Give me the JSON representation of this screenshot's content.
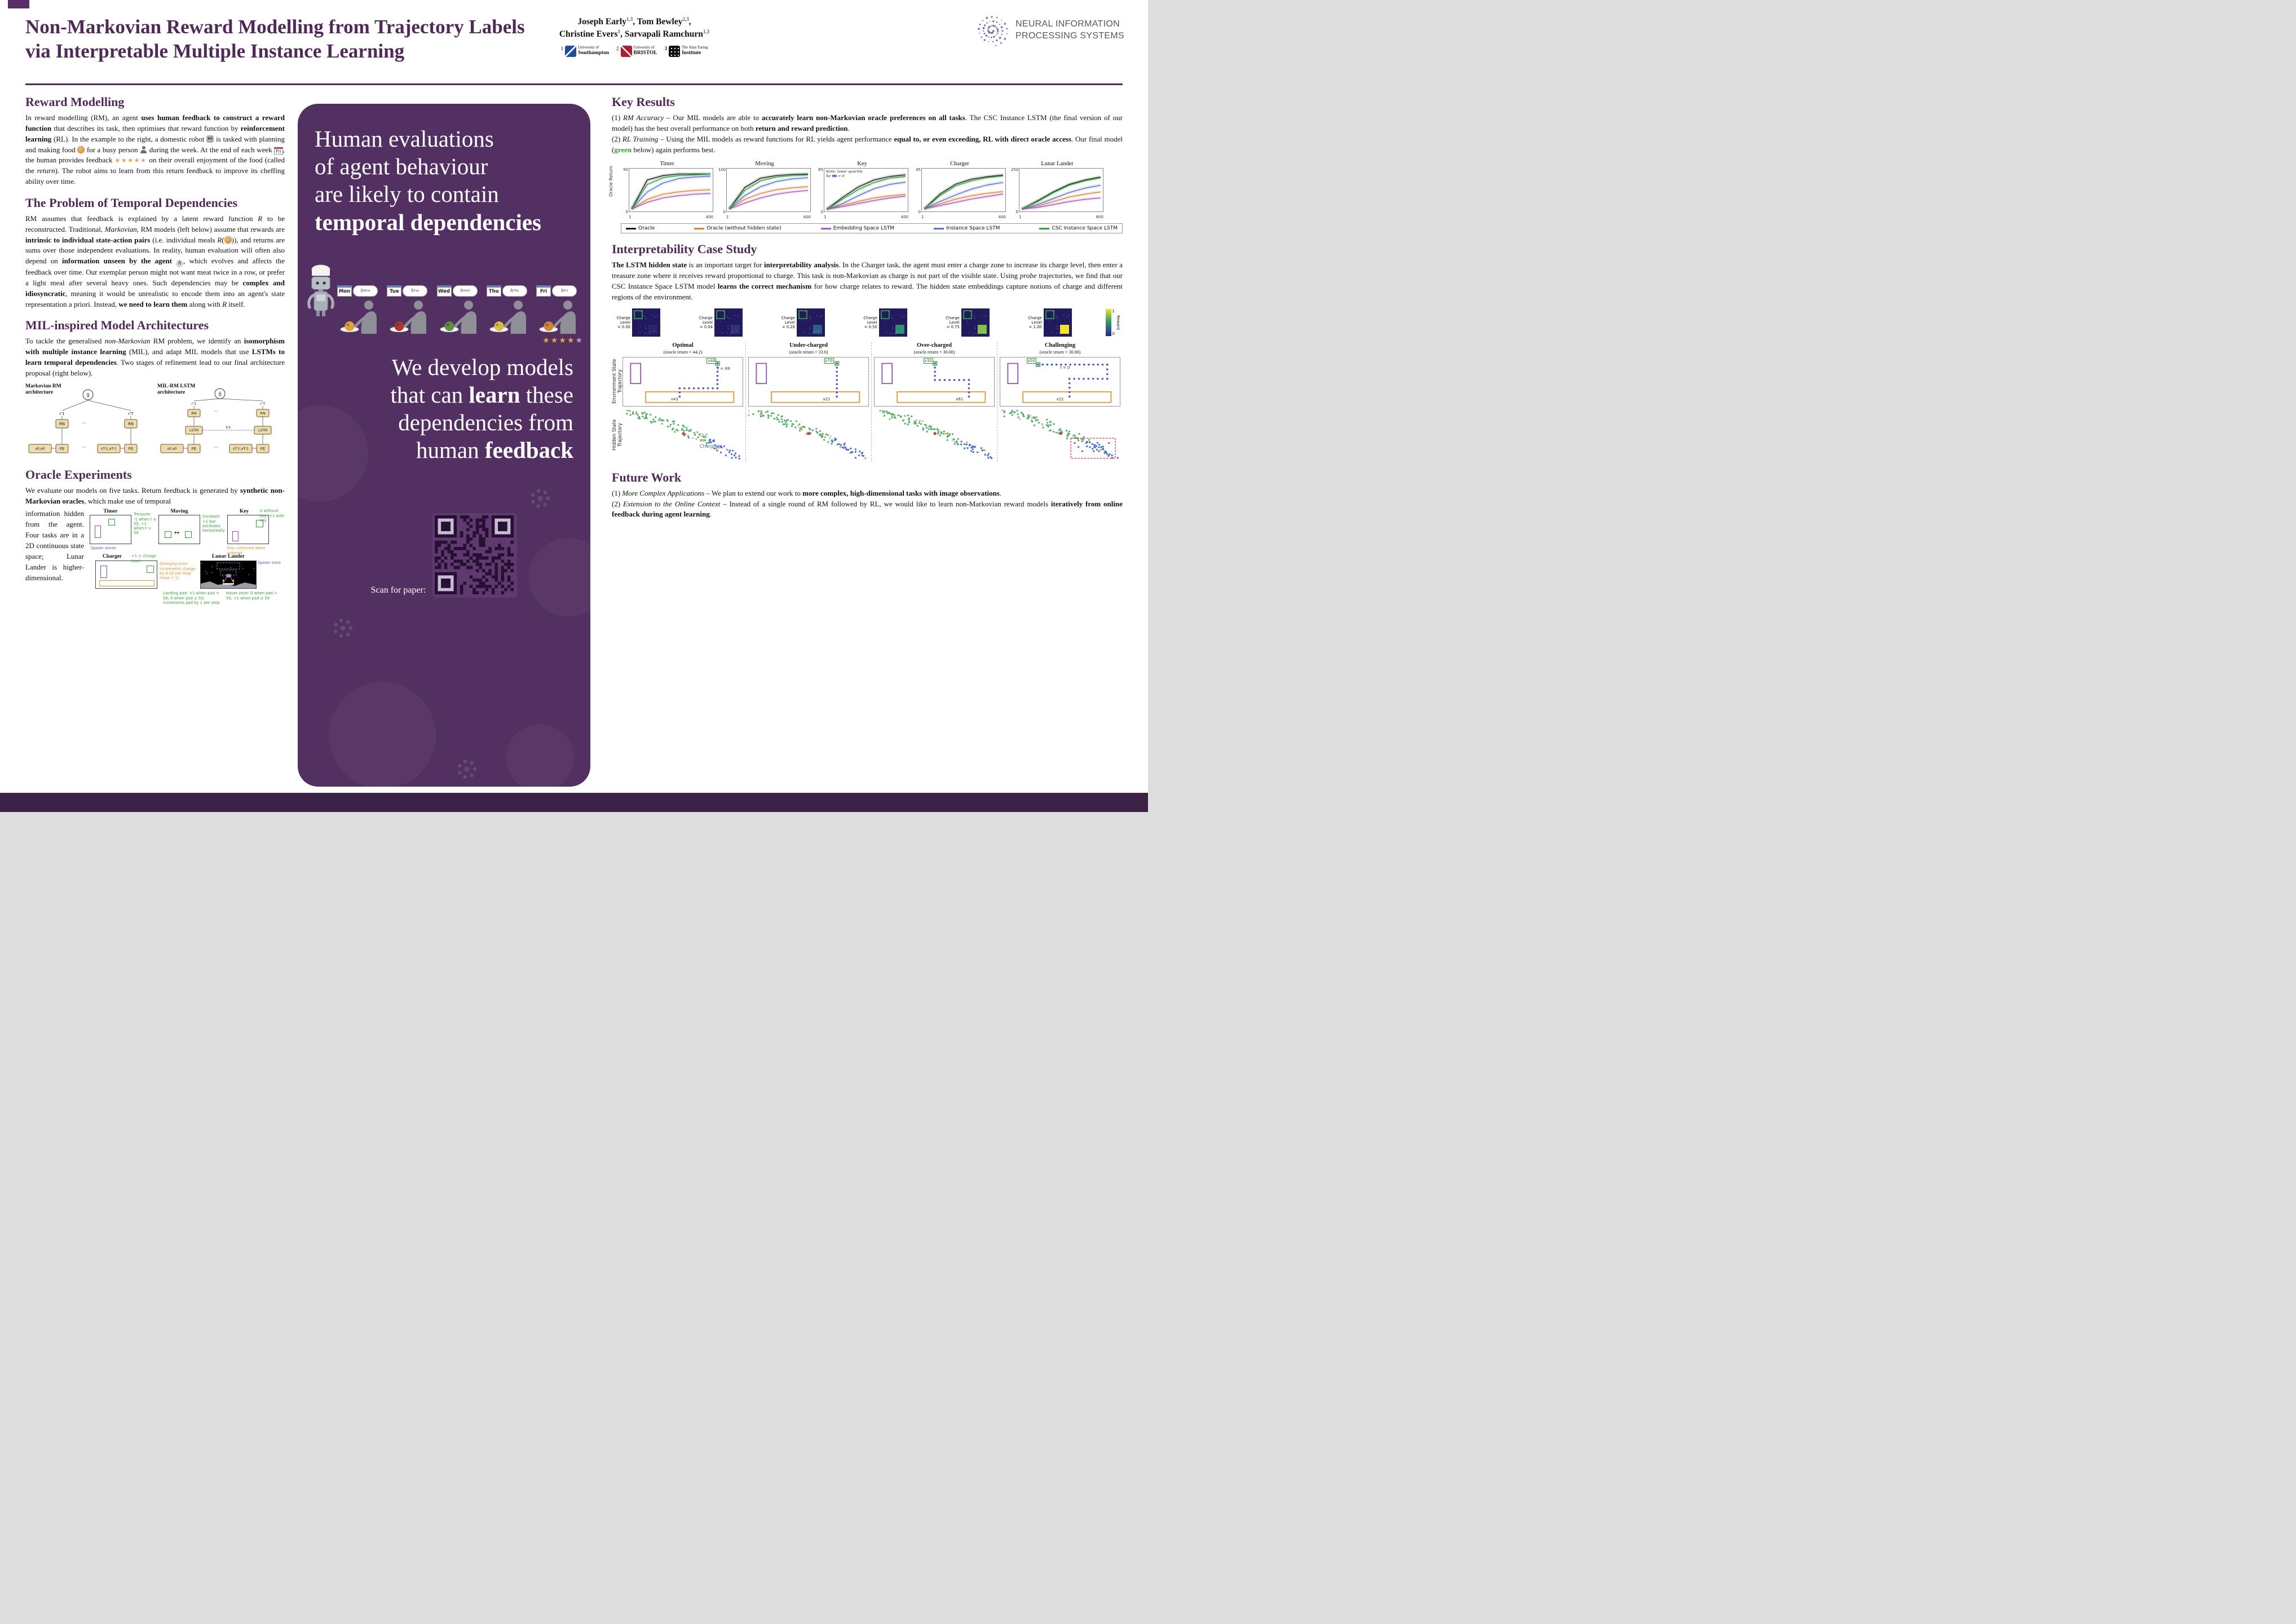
{
  "header": {
    "title_line1": "Non-Markovian Reward Modelling from Trajectory Labels",
    "title_line2": "via Interpretable Multiple Instance Learning",
    "authors_html": "Joseph Early<sup>1,3</sup>, Tom Bewley<sup>2,3</sup>,<br>Christine Evers<sup>1</sup>, Sarvapali Ramchurn<sup>1,3</sup>",
    "affiliations": [
      {
        "sup": "1",
        "line1": "University of",
        "line2": "Southampton",
        "style": "soton"
      },
      {
        "sup": "2",
        "line1": "University of",
        "line2": "BRISTOL",
        "style": "bristol"
      },
      {
        "sup": "3",
        "line1": "The Alan Turing",
        "line2": "Institute",
        "style": "turing"
      }
    ],
    "sup_colors": [
      "#7b3fa0",
      "#c0392b",
      "#222222"
    ],
    "neurips_line1": "NEURAL INFORMATION",
    "neurips_line2": "PROCESSING SYSTEMS"
  },
  "left": {
    "s1_heading": "Reward Modelling",
    "s1_body_html": "In reward modelling (RM), an agent <b>uses human feedback to construct a reward function</b> that describes its task, then optimises that reward function by <b>reinforcement learning</b> (RL). In the example to the right, a domestic robot <span class='ic ic-robot' data-name='robot-icon' data-interactable='false'></span> is tasked with planning and making food <span class='ic ic-food' data-name='food-icon' data-interactable='false'></span> for a busy person <span class='ic ic-person' data-name='person-icon' data-interactable='false'></span> during the week. At the end of each week <span class='ic-cal' data-name='friday-calendar-icon' data-interactable='false'>Fri</span>, the human provides feedback <span class='stars-inline' data-name='star-rating-icon' data-interactable='false'>&#9733;&#9733;&#9733;&#9733;<span class='star-grey'>&#9733;</span></span> on their overall enjoyment of the food (called the <i>return</i>). The robot aims to learn from this return feedback to improve its cheffing ability over time.",
    "s2_heading": "The Problem of Temporal Dependencies",
    "s2_body_html": "RM assumes that feedback is explained by a latent reward function <i>R</i> to be reconstructed. Traditional, <i>Markovian</i>, RM models (left below) assume that rewards are <b>intrinsic to individual state-action pairs</b> (i.e. individual meals <i>R</i>(<span class='ic ic-food' data-name='food-icon' data-interactable='false'></span>)), and returns are sums over those independent evaluations. In reality, human evaluation will often also depend on <b>information unseen by the agent</b> <span class='ic-h' data-name='hidden-state-icon' data-interactable='false'>h</span>, which evolves and affects the feedback over time. Our exemplar person might not want meat twice in a row, or prefer a light meal after several heavy ones. Such dependencies may be <b>complex and idiosyncratic</b>, meaning it would be unrealistic to encode them into an agent's state representation a priori. Instead, <b>we need to learn them</b> along with <i>R</i> itself.",
    "s3_heading": "MIL-inspired Model Architectures",
    "s3_body_html": "To tackle the generalised <i>non-Markovian</i> RM problem, we identify an <b>isomorphism with multiple instance learning</b> (MIL), and adapt MIL models that use <b>LSTMs to learn temporal dependencies</b>. Two stages of refinement lead to our final architecture proposal (right below).",
    "arch": {
      "left_title": "Markovian RM architecture",
      "right_title": "MIL-RM LSTM architecture",
      "s0": "s0,a0",
      "sT": "sT-1,aT-1",
      "fe": "FE",
      "rn": "RN",
      "r1": "r'1",
      "rT": "r'T",
      "g": "ĝ",
      "lstm": "LSTM",
      "hk": "h'k",
      "dots": "···"
    },
    "s4_heading": "Oracle Experiments",
    "s4_body_html": "We evaluate our models on five tasks. Return feedback is generated by <b>synthetic non-Markovian oracles</b>, which make use of temporal",
    "s4_side_text": "information hidden from the agent. Four tasks are in a 2D continuous state space; Lunar Lander is higher-dimensional.",
    "tasks": {
      "timer": {
        "name": "Timer",
        "ann_treasure": "Treasure: -1 when t ≤ 50, +1 when t > 50",
        "ann_spawn": "Spawn zones"
      },
      "moving": {
        "name": "Moving",
        "ann": "Constant +1 but oscillates horizontally"
      },
      "key": {
        "name": "Key",
        "ann_value": "0 without key, +1 with key",
        "ann_key": "Key: collected when entered"
      },
      "charger": {
        "name": "Charger",
        "ann_value": "+1 × charge level",
        "ann_zone": "Charging zone: increments charge by 0.02 per step (max = 1)"
      },
      "lunar": {
        "name": "Lunar Lander",
        "ann_spawn": "Spawn zone",
        "ann_pad": "Landing pad: +1 when pad < 50; 0 when pad ≥ 50; increments pad by 1 per step",
        "ann_hover": "Hover zone: 0 when pad < 50, +1 when pad ≥ 50"
      }
    }
  },
  "middle": {
    "headline_html": "Human evaluations<br>of agent behaviour<br>are likely to contain<br><b>temporal dependencies</b>",
    "days": [
      "Mon",
      "Tue",
      "Wed",
      "Thu",
      "Fri"
    ],
    "hidden_symbol": "h",
    "food_colors": [
      "#e0a23c",
      "#a83a2c",
      "#5f8f3e",
      "#d3c043",
      "#cc8736"
    ],
    "stars_filled": 4,
    "stars_total": 5,
    "statement_html": "We develop models<br>that can <b>learn</b> these<br>dependencies from<br>human <b>feedback</b>",
    "scan_label": "Scan for paper:"
  },
  "right": {
    "key_results_heading": "Key Results",
    "key_results_body_html": "(1) <i>RM Accuracy</i> – Our MIL models are able to <b>accurately learn non-Markovian oracle preferences on all tasks</b>. The CSC Instance LSTM (the final version of our model) has the best overall performance on both <b>return and reward prediction</b>.<br>(2) <i>RL Training</i> – Using the MIL models as reward functions for RL yields agent performance <b>equal to, or even exceeding, RL with direct oracle access</b>. Our final model (<span class='green-word'>green</span> below) again performs best.",
    "ylabel": "Oracle Return",
    "series_colors": {
      "oracle": "#1a1a1a",
      "oracle_nh": "#e2822f",
      "emb": "#a05bc4",
      "inst": "#5470d6",
      "csc": "#2fa43c"
    },
    "key_note_html": "Note: lower quartile for <span class='note-swatch' data-name='quartile-swatch-icon' data-interactable='false'></span> = 0",
    "legend": [
      {
        "label": "Oracle",
        "key": "oracle"
      },
      {
        "label": "Oracle (without hidden state)",
        "key": "oracle_nh"
      },
      {
        "label": "Embedding Space LSTM",
        "key": "emb"
      },
      {
        "label": "Instance Space LSTM",
        "key": "inst"
      },
      {
        "label": "CSC Instance Space LSTM",
        "key": "csc"
      }
    ],
    "interp_heading": "Interpretability Case Study",
    "interp_body_html": "<b>The LSTM hidden state</b> is an important target for <b>interpretability analysis</b>. In the Charger task, the agent must enter a charge zone to increase its charge level, then enter a treasure zone where it receives reward proportional to charge. This task is non-Markovian as charge is not part of the visible state. Using <i>probe</i> trajectories, we find that our CSC Instance Space LSTM model <b>learns the correct mechanism</b> for how charge relates to reward. The hidden state embeddings capture notions of charge and different regions of the environment.",
    "strip": {
      "label_l1": "Charge",
      "label_l2": "Level",
      "cells": [
        {
          "value": "= 0.00",
          "color": "#2d2270"
        },
        {
          "value": "= 0.04",
          "color": "#33307c"
        },
        {
          "value": "= 0.20",
          "color": "#2a5f8a"
        },
        {
          "value": "= 0.50",
          "color": "#2f9070"
        },
        {
          "value": "= 0.75",
          "color": "#7fc24a"
        },
        {
          "value": "= 1.00",
          "color": "#f2e32a"
        }
      ],
      "env_bg": "#221a5e",
      "zone_color": "#3faa4f",
      "colorbar_label": "Reward",
      "colorbar_max": "1",
      "colorbar_min": "0"
    },
    "grid": {
      "row1_label": "Environment State Trajectory",
      "row2_label": "Hidden State Trajectory",
      "columns": [
        {
          "name": "Optimal",
          "ret": "(oracle return = 44.2)",
          "env_labels": [
            "x48",
            "t = 99",
            "x43"
          ]
        },
        {
          "name": "Under-charged",
          "ret": "(oracle return = 33.6)",
          "env_labels": [
            "x70",
            "",
            "x21"
          ]
        },
        {
          "name": "Over-charged",
          "ret": "(oracle return = 30.00)",
          "env_labels": [
            "x30",
            "",
            "x61"
          ]
        },
        {
          "name": "Challenging",
          "ret": "(oracle return = 30.00)",
          "env_labels": [
            "x50",
            "t = 0",
            "x21"
          ]
        }
      ],
      "hidden_legend": [
        {
          "label": "Out",
          "color": "#55b06a"
        },
        {
          "label": "In",
          "color": "#e09b3d"
        },
        {
          "label": "Charging",
          "color": "#4a6fd4"
        }
      ]
    },
    "future_heading": "Future Work",
    "future_body_html": "(1) <i>More Complex Applications</i> – We plan to extend our work to <b>more complex, high-dimensional tasks with image observations</b>.<br>(2) <i>Extension to the Online Context</i> – Instead of a single round of RM followed by RL, we would like to learn non-Markovian reward models <b>iteratively from online feedback during agent learning</b>."
  },
  "chart_data": [
    {
      "type": "line",
      "title": "Timer",
      "ylim": [
        0,
        50
      ],
      "x": [
        0,
        80,
        160,
        240,
        320,
        400
      ],
      "xticks": [
        "1",
        "400"
      ],
      "series": [
        {
          "key": "oracle",
          "name": "Oracle",
          "values": [
            1,
            40,
            46,
            48,
            48,
            48
          ]
        },
        {
          "key": "oracle_nh",
          "name": "Oracle (without hidden state)",
          "values": [
            1,
            14,
            21,
            24,
            26,
            27
          ]
        },
        {
          "key": "emb",
          "name": "Embedding Space LSTM",
          "values": [
            1,
            10,
            16,
            19,
            21,
            22
          ]
        },
        {
          "key": "inst",
          "name": "Instance Space LSTM",
          "values": [
            1,
            24,
            36,
            42,
            44,
            45
          ]
        },
        {
          "key": "csc",
          "name": "CSC Instance Space LSTM",
          "values": [
            1,
            34,
            43,
            46,
            47,
            48
          ]
        }
      ]
    },
    {
      "type": "line",
      "title": "Moving",
      "ylim": [
        0,
        100
      ],
      "x": [
        0,
        80,
        160,
        240,
        320,
        400
      ],
      "xticks": [
        "1",
        "400"
      ],
      "series": [
        {
          "key": "oracle",
          "name": "Oracle",
          "values": [
            2,
            60,
            85,
            92,
            95,
            96
          ]
        },
        {
          "key": "oracle_nh",
          "name": "Oracle (without hidden state)",
          "values": [
            2,
            28,
            44,
            54,
            59,
            62
          ]
        },
        {
          "key": "emb",
          "name": "Embedding Space LSTM",
          "values": [
            2,
            18,
            32,
            42,
            48,
            52
          ]
        },
        {
          "key": "inst",
          "name": "Instance Space LSTM",
          "values": [
            2,
            38,
            62,
            76,
            83,
            86
          ]
        },
        {
          "key": "csc",
          "name": "CSC Instance Space LSTM",
          "values": [
            2,
            52,
            78,
            88,
            92,
            94
          ]
        }
      ]
    },
    {
      "type": "line",
      "title": "Key",
      "ylim": [
        0,
        85
      ],
      "x": [
        0,
        80,
        160,
        240,
        320,
        400
      ],
      "xticks": [
        "1",
        "400"
      ],
      "series": [
        {
          "key": "oracle",
          "name": "Oracle",
          "values": [
            1,
            28,
            52,
            68,
            76,
            80
          ]
        },
        {
          "key": "oracle_nh",
          "name": "Oracle (without hidden state)",
          "values": [
            1,
            10,
            19,
            27,
            32,
            35
          ]
        },
        {
          "key": "emb",
          "name": "Embedding Space LSTM",
          "values": [
            1,
            7,
            14,
            21,
            27,
            31
          ]
        },
        {
          "key": "inst",
          "name": "Instance Space LSTM",
          "values": [
            1,
            14,
            32,
            48,
            58,
            63
          ]
        },
        {
          "key": "csc",
          "name": "CSC Instance Space LSTM",
          "values": [
            1,
            24,
            46,
            62,
            72,
            76
          ]
        }
      ]
    },
    {
      "type": "line",
      "title": "Charger",
      "ylim": [
        0,
        45
      ],
      "x": [
        0,
        80,
        160,
        240,
        320,
        400
      ],
      "xticks": [
        "1",
        "400"
      ],
      "series": [
        {
          "key": "oracle",
          "name": "Oracle",
          "values": [
            1,
            19,
            31,
            37,
            40,
            42
          ]
        },
        {
          "key": "oracle_nh",
          "name": "Oracle (without hidden state)",
          "values": [
            1,
            7,
            13,
            17,
            20,
            22
          ]
        },
        {
          "key": "emb",
          "name": "Embedding Space LSTM",
          "values": [
            1,
            5,
            9,
            13,
            16,
            19
          ]
        },
        {
          "key": "inst",
          "name": "Instance Space LSTM",
          "values": [
            1,
            10,
            18,
            25,
            30,
            33
          ]
        },
        {
          "key": "csc",
          "name": "CSC Instance Space LSTM",
          "values": [
            1,
            17,
            29,
            35,
            39,
            41
          ]
        }
      ]
    },
    {
      "type": "line",
      "title": "Lunar Lander",
      "ylim": [
        0,
        250
      ],
      "x": [
        0,
        160,
        320,
        480,
        640,
        800
      ],
      "xticks": [
        "1",
        "800"
      ],
      "series": [
        {
          "key": "oracle",
          "name": "Oracle",
          "values": [
            5,
            60,
            120,
            170,
            200,
            220
          ]
        },
        {
          "key": "oracle_nh",
          "name": "Oracle (without hidden state)",
          "values": [
            5,
            25,
            55,
            85,
            105,
            120
          ]
        },
        {
          "key": "emb",
          "name": "Embedding Space LSTM",
          "values": [
            5,
            15,
            35,
            55,
            70,
            80
          ]
        },
        {
          "key": "inst",
          "name": "Instance Space LSTM",
          "values": [
            5,
            35,
            75,
            115,
            145,
            165
          ]
        },
        {
          "key": "csc",
          "name": "CSC Instance Space LSTM",
          "values": [
            5,
            55,
            115,
            165,
            195,
            215
          ]
        }
      ]
    }
  ],
  "colors": {
    "panel": "#523061",
    "heading": "#4f2a57",
    "footer": "#3b2145"
  }
}
